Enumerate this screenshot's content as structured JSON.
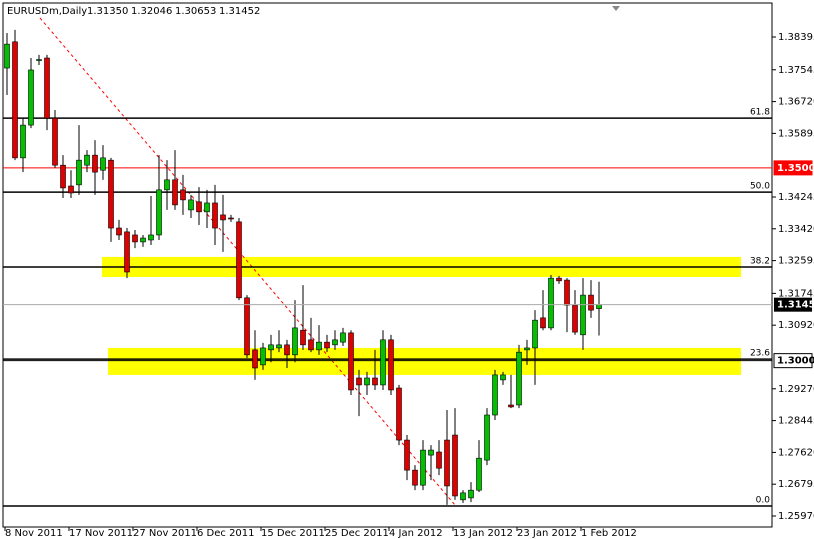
{
  "chart_data": {
    "type": "candlestick",
    "title": "EURUSDm,Daily",
    "header_prices": [
      "1.31350",
      "1.32046",
      "1.30653",
      "1.31452"
    ],
    "categories": [
      "8 Nov 2011",
      null,
      null,
      null,
      null,
      null,
      null,
      null,
      "17 Nov 2011",
      null,
      null,
      null,
      null,
      null,
      null,
      null,
      "27 Nov 2011",
      null,
      null,
      null,
      null,
      null,
      null,
      null,
      "6 Dec 2011",
      null,
      null,
      null,
      null,
      null,
      null,
      null,
      "15 Dec 2011",
      null,
      null,
      null,
      null,
      null,
      null,
      null,
      "25 Dec 2011",
      null,
      null,
      null,
      null,
      null,
      null,
      null,
      "4 Jan 2012",
      null,
      null,
      null,
      null,
      null,
      null,
      null,
      "13 Jan 2012",
      null,
      null,
      null,
      null,
      null,
      null,
      null,
      "23 Jan 2012",
      null,
      null,
      null,
      null,
      null,
      null,
      null,
      "1 Feb 2012",
      null,
      null
    ],
    "ohlc": [
      [
        1.3759,
        1.385,
        1.3689,
        1.3821
      ],
      [
        1.3827,
        1.3858,
        1.352,
        1.3526
      ],
      [
        1.3526,
        1.3629,
        1.3489,
        1.3611
      ],
      [
        1.3611,
        1.3785,
        1.3603,
        1.3754
      ],
      [
        1.378,
        1.3793,
        1.3767,
        1.3781
      ],
      [
        1.3785,
        1.3793,
        1.3598,
        1.3629
      ],
      [
        1.3629,
        1.365,
        1.35,
        1.3507
      ],
      [
        1.3507,
        1.3533,
        1.3422,
        1.3448
      ],
      [
        1.3453,
        1.3494,
        1.3422,
        1.3435
      ],
      [
        1.3456,
        1.3611,
        1.343,
        1.352
      ],
      [
        1.3507,
        1.3546,
        1.3489,
        1.3533
      ],
      [
        1.3533,
        1.3572,
        1.343,
        1.3489
      ],
      [
        1.3494,
        1.3559,
        1.3469,
        1.3526
      ],
      [
        1.352,
        1.3526,
        1.3308,
        1.3344
      ],
      [
        1.3344,
        1.3365,
        1.3313,
        1.3326
      ],
      [
        1.3334,
        1.3344,
        1.3214,
        1.323
      ],
      [
        1.3326,
        1.3339,
        1.3292,
        1.3308
      ],
      [
        1.3308,
        1.3326,
        1.3295,
        1.3318
      ],
      [
        1.3313,
        1.3427,
        1.33,
        1.3326
      ],
      [
        1.3326,
        1.3533,
        1.3313,
        1.3443
      ],
      [
        1.3443,
        1.352,
        1.3391,
        1.3469
      ],
      [
        1.3469,
        1.3546,
        1.3391,
        1.3404
      ],
      [
        1.3443,
        1.3482,
        1.3378,
        1.3417
      ],
      [
        1.3391,
        1.343,
        1.337,
        1.3417
      ],
      [
        1.3412,
        1.345,
        1.3352,
        1.3386
      ],
      [
        1.3386,
        1.3443,
        1.3344,
        1.3409
      ],
      [
        1.3409,
        1.3456,
        1.33,
        1.3344
      ],
      [
        1.3378,
        1.343,
        1.3282,
        1.3365
      ],
      [
        1.337,
        1.3378,
        1.336,
        1.3369
      ],
      [
        1.336,
        1.337,
        1.3157,
        1.3163
      ],
      [
        1.3163,
        1.317,
        1.3007,
        1.3015
      ],
      [
        1.3028,
        1.3079,
        1.295,
        1.2981
      ],
      [
        1.2989,
        1.3046,
        1.2976,
        1.3033
      ],
      [
        1.3028,
        1.3067,
        1.2996,
        1.3041
      ],
      [
        1.3033,
        1.3079,
        1.3022,
        1.3041
      ],
      [
        1.3041,
        1.3054,
        1.2981,
        1.3015
      ],
      [
        1.3015,
        1.3157,
        1.2996,
        1.3085
      ],
      [
        1.3079,
        1.3196,
        1.3028,
        1.3041
      ],
      [
        1.3054,
        1.3111,
        1.3022,
        1.3028
      ],
      [
        1.3028,
        1.3092,
        1.3015,
        1.3048
      ],
      [
        1.3048,
        1.3067,
        1.3022,
        1.3033
      ],
      [
        1.3041,
        1.3079,
        1.3028,
        1.3054
      ],
      [
        1.3048,
        1.3085,
        1.3038,
        1.3072
      ],
      [
        1.3072,
        1.3079,
        1.2911,
        1.2924
      ],
      [
        1.2955,
        1.2976,
        1.2856,
        1.2937
      ],
      [
        1.2937,
        1.2971,
        1.2911,
        1.2955
      ],
      [
        1.2955,
        1.3028,
        1.2924,
        1.2937
      ],
      [
        1.2937,
        1.3079,
        1.2924,
        1.3054
      ],
      [
        1.3054,
        1.3067,
        1.2911,
        1.2924
      ],
      [
        1.2929,
        1.2937,
        1.2781,
        1.2794
      ],
      [
        1.2794,
        1.2807,
        1.269,
        1.2716
      ],
      [
        1.2716,
        1.2729,
        1.2664,
        1.2677
      ],
      [
        1.2677,
        1.2794,
        1.2664,
        1.2768
      ],
      [
        1.2755,
        1.2781,
        1.269,
        1.2768
      ],
      [
        1.2763,
        1.2794,
        1.2703,
        1.2721
      ],
      [
        1.2794,
        1.2872,
        1.2626,
        1.2675
      ],
      [
        1.2807,
        1.2877,
        1.2639,
        1.2649
      ],
      [
        1.2639,
        1.2664,
        1.2631,
        1.2657
      ],
      [
        1.2644,
        1.2685,
        1.2633,
        1.2664
      ],
      [
        1.2664,
        1.2794,
        1.2659,
        1.2747
      ],
      [
        1.2742,
        1.2877,
        1.2729,
        1.2859
      ],
      [
        1.2859,
        1.2976,
        1.2846,
        1.2963
      ],
      [
        1.295,
        1.2971,
        1.2937,
        1.2963
      ],
      [
        1.2885,
        1.2963,
        1.2877,
        1.288
      ],
      [
        1.2885,
        1.3041,
        1.2877,
        1.3022
      ],
      [
        1.3028,
        1.3054,
        1.2989,
        1.3033
      ],
      [
        1.3033,
        1.3131,
        1.2937,
        1.3105
      ],
      [
        1.3111,
        1.3183,
        1.3079,
        1.3085
      ],
      [
        1.3085,
        1.3222,
        1.3079,
        1.3214
      ],
      [
        1.3214,
        1.322,
        1.3199,
        1.3207
      ],
      [
        1.3209,
        1.3214,
        1.3074,
        1.3144
      ],
      [
        1.3144,
        1.3183,
        1.3067,
        1.3074
      ],
      [
        1.3067,
        1.3214,
        1.3028,
        1.317
      ],
      [
        1.317,
        1.3209,
        1.3111,
        1.3131
      ],
      [
        1.3135,
        1.32046,
        1.30653,
        1.31452
      ]
    ],
    "up_color": "#00c000",
    "down_color": "#e00000",
    "ylim": [
      1.25685,
      1.39277
    ],
    "yticks": [
      1.38395,
      1.37545,
      {
        "value": 1.3672,
        "label": "1.36720"
      },
      1.35895,
      1.34245,
      {
        "value": 1.3342,
        "label": "1.33420"
      },
      1.32595,
      1.31745,
      {
        "value": 1.3092,
        "label": "1.30920"
      },
      {
        "value": 1.2927,
        "label": "1.29270"
      },
      1.28445,
      {
        "value": 1.2762,
        "label": "1.27620"
      },
      1.26795,
      {
        "value": 1.2597,
        "label": "1.25970"
      }
    ],
    "fib_levels": [
      {
        "label": "61.8",
        "price": 1.3629
      },
      {
        "label": "50.0",
        "price": 1.3437
      },
      {
        "label": "38.2",
        "price": 1.3243
      },
      {
        "label": "23.6",
        "price": 1.3004
      },
      {
        "label": "0.0",
        "price": 1.2623
      }
    ],
    "zones": [
      {
        "from": 1.3269,
        "to": 1.3217,
        "color": "#ffff00"
      },
      {
        "from": 1.3033,
        "to": 1.2963,
        "color": "#ffff00"
      }
    ],
    "price_lines": [
      {
        "price": 1.35,
        "label": "1.35000",
        "color": "#ff0000"
      },
      {
        "price": 1.3,
        "label": "1.30000",
        "color": "#000000"
      }
    ]
  }
}
